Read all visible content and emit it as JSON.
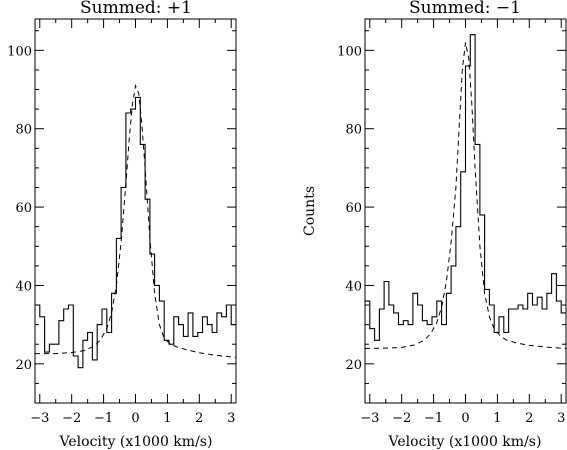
{
  "chart_data": [
    {
      "type": "line",
      "title": "Summed: +1",
      "xlabel": "Velocity (x1000 km/s)",
      "ylabel": "",
      "xlim": [
        -3.15,
        3.15
      ],
      "ylim": [
        10,
        108
      ],
      "xticks": [
        -3,
        -2,
        -1,
        0,
        1,
        2,
        3
      ],
      "yticks": [
        20,
        40,
        60,
        80,
        100
      ],
      "series": [
        {
          "style": "histogram",
          "x": [
            -3.15,
            -3.0,
            -2.85,
            -2.7,
            -2.55,
            -2.4,
            -2.25,
            -2.1,
            -1.95,
            -1.8,
            -1.65,
            -1.5,
            -1.35,
            -1.2,
            -1.05,
            -0.9,
            -0.75,
            -0.6,
            -0.45,
            -0.3,
            -0.15,
            0.0,
            0.15,
            0.3,
            0.45,
            0.6,
            0.75,
            0.9,
            1.05,
            1.2,
            1.35,
            1.5,
            1.65,
            1.8,
            1.95,
            2.1,
            2.25,
            2.4,
            2.55,
            2.7,
            2.85,
            3.0
          ],
          "y": [
            35,
            32,
            23,
            25,
            25,
            31,
            34,
            35,
            22,
            19,
            26,
            28,
            21,
            30,
            34,
            28,
            38,
            52,
            65,
            84,
            85,
            88,
            76,
            62,
            48,
            40,
            36,
            26,
            25,
            32,
            30,
            27,
            33,
            27,
            28,
            32,
            30,
            28,
            33,
            32,
            35,
            30
          ]
        },
        {
          "style": "dashed",
          "x": [
            -3.15,
            -2.5,
            -2.0,
            -1.6,
            -1.3,
            -1.1,
            -0.9,
            -0.75,
            -0.6,
            -0.45,
            -0.3,
            -0.2,
            -0.1,
            0.0,
            0.1,
            0.2,
            0.3,
            0.45,
            0.6,
            0.75,
            0.9,
            1.1,
            1.3,
            1.6,
            2.0,
            2.5,
            3.15
          ],
          "y": [
            22.6,
            22.6,
            22.9,
            23.4,
            24.5,
            26.1,
            29.0,
            33.0,
            40.0,
            51.0,
            66.0,
            77.0,
            86.0,
            91.0,
            89.0,
            81.0,
            70.0,
            52.0,
            38.0,
            30.0,
            26.5,
            25.0,
            24.3,
            23.6,
            22.8,
            22.2,
            21.6
          ]
        }
      ]
    },
    {
      "type": "line",
      "title": "Summed: −1",
      "xlabel": "Velocity (x1000 km/s)",
      "ylabel": "Counts",
      "xlim": [
        -3.15,
        3.15
      ],
      "ylim": [
        10,
        108
      ],
      "xticks": [
        -3,
        -2,
        -1,
        0,
        1,
        2,
        3
      ],
      "yticks": [
        20,
        40,
        60,
        80,
        100
      ],
      "series": [
        {
          "style": "histogram",
          "x": [
            -3.15,
            -3.0,
            -2.85,
            -2.7,
            -2.55,
            -2.4,
            -2.25,
            -2.1,
            -1.95,
            -1.8,
            -1.65,
            -1.5,
            -1.35,
            -1.2,
            -1.05,
            -0.9,
            -0.75,
            -0.6,
            -0.45,
            -0.3,
            -0.15,
            0.0,
            0.15,
            0.3,
            0.45,
            0.6,
            0.75,
            0.9,
            1.05,
            1.2,
            1.35,
            1.5,
            1.65,
            1.8,
            1.95,
            2.1,
            2.25,
            2.4,
            2.55,
            2.7,
            2.85,
            3.0
          ],
          "y": [
            36,
            29,
            26,
            34,
            41,
            35,
            33,
            30,
            31,
            30,
            38,
            35,
            31,
            30,
            32,
            36,
            30,
            38,
            45,
            55,
            69,
            96,
            104,
            76,
            58,
            39,
            35,
            28,
            32,
            28,
            34,
            34,
            35,
            34,
            38,
            35,
            37,
            34,
            38,
            43,
            36,
            33
          ]
        },
        {
          "style": "dashed",
          "x": [
            -3.15,
            -2.5,
            -2.0,
            -1.6,
            -1.3,
            -1.1,
            -0.9,
            -0.75,
            -0.6,
            -0.45,
            -0.3,
            -0.2,
            -0.1,
            0.0,
            0.1,
            0.2,
            0.3,
            0.45,
            0.6,
            0.75,
            0.9,
            1.1,
            1.3,
            1.6,
            2.0,
            2.5,
            3.15
          ],
          "y": [
            23.9,
            24.0,
            24.2,
            24.8,
            26.0,
            27.6,
            30.5,
            34.5,
            41.0,
            51.0,
            65.0,
            80.0,
            95.0,
            102.0,
            98.0,
            86.0,
            70.0,
            50.0,
            38.0,
            32.0,
            29.0,
            27.0,
            26.0,
            25.3,
            24.7,
            24.3,
            23.9
          ]
        }
      ]
    }
  ]
}
